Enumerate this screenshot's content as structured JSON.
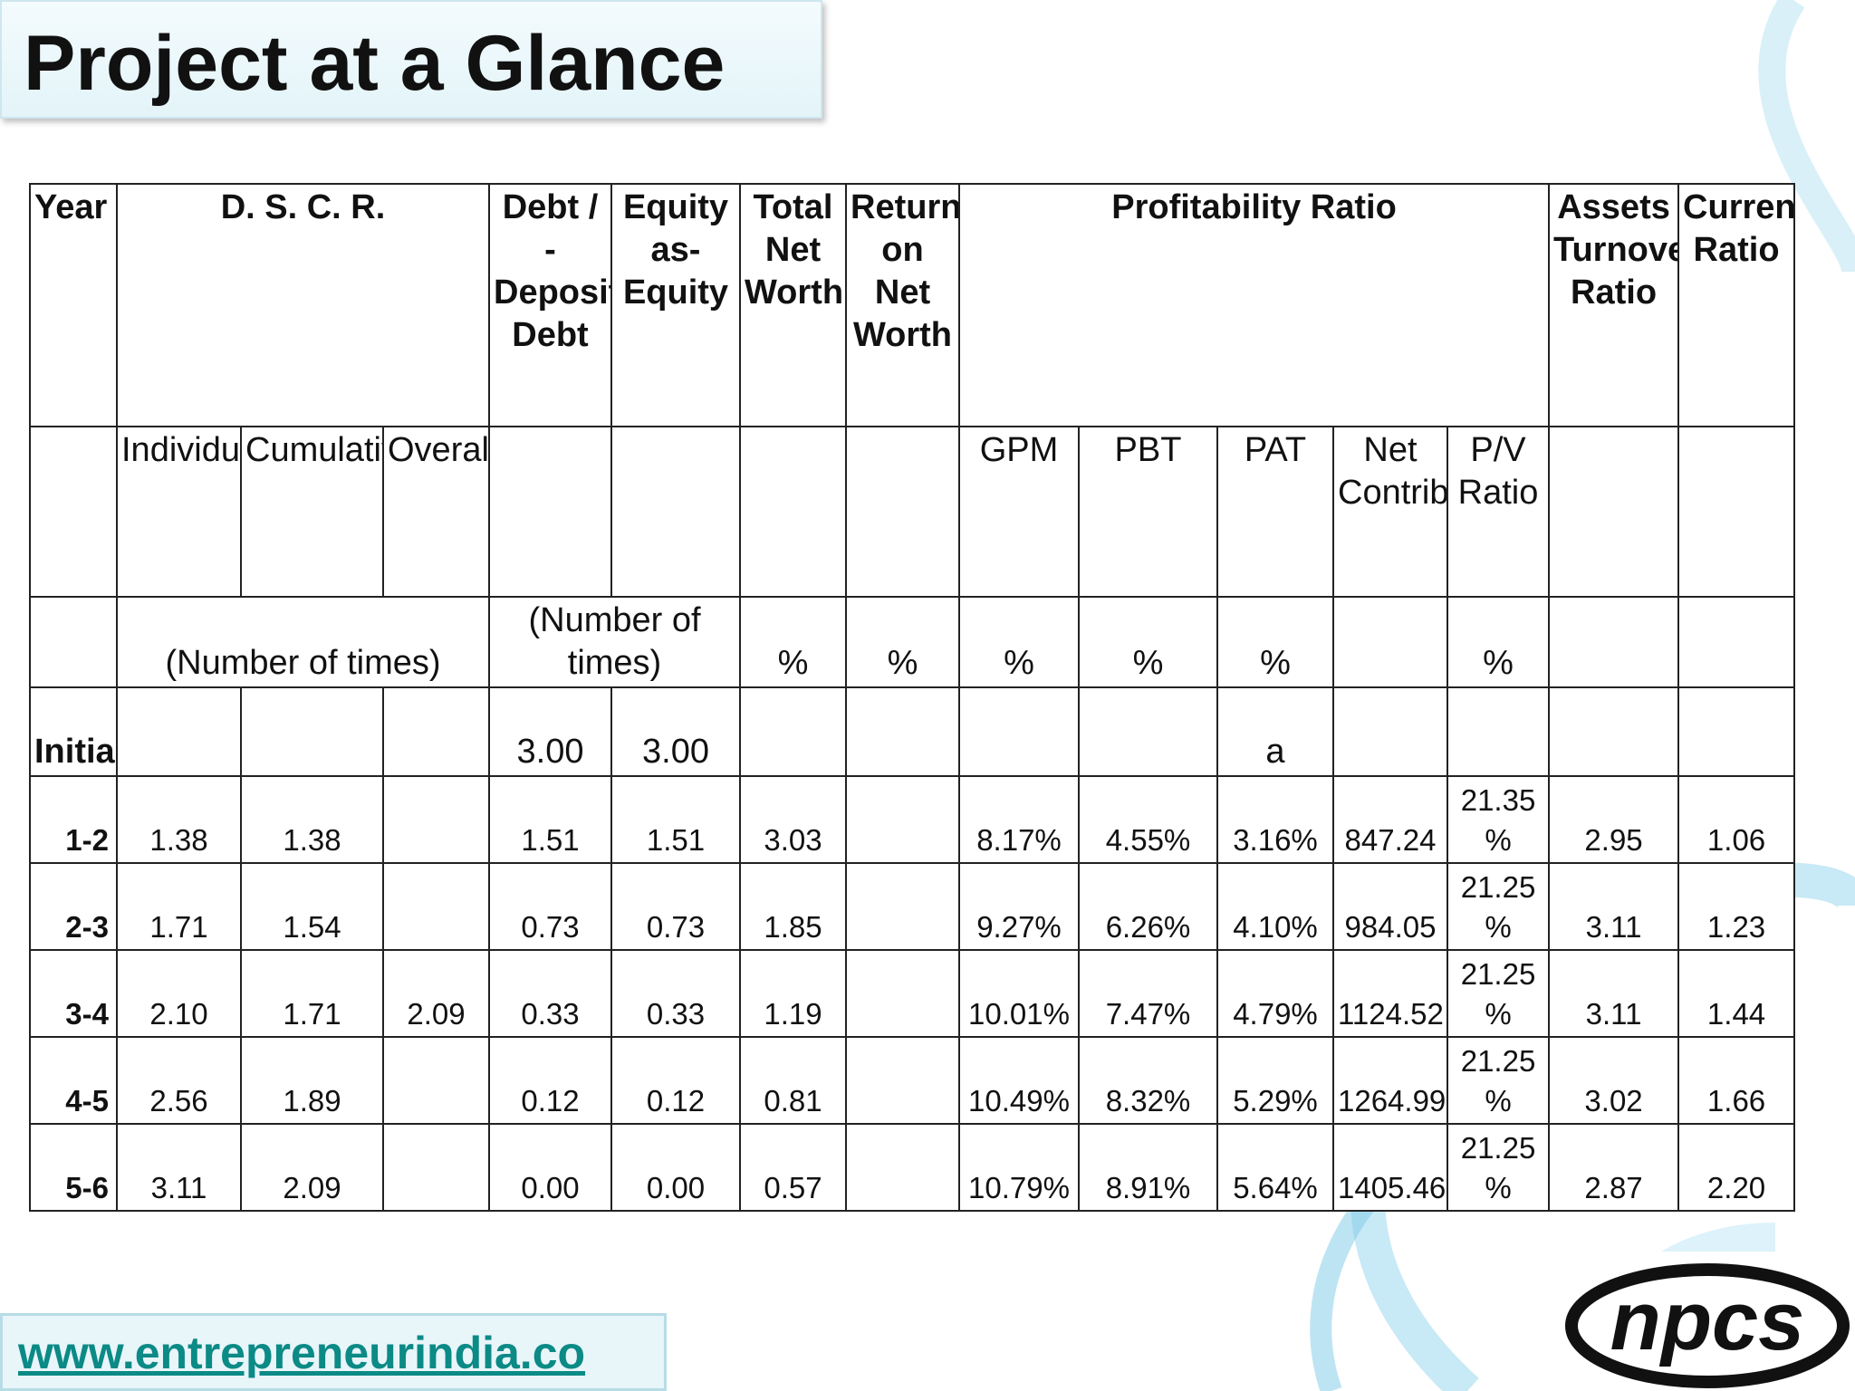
{
  "slide": {
    "title": "Project at a Glance"
  },
  "footer": {
    "link_text": "www.entrepreneurindia.co"
  },
  "logo": {
    "text": "npcs"
  },
  "table": {
    "header": {
      "year": "Year",
      "dscr": "D. S. C. R.",
      "debt_deposits": "Debt / - Deposits Debt",
      "equity": "Equity as- Equity",
      "total_net_worth": "Total Net Worth",
      "return_on_net_worth": "Return on Net Worth",
      "profitability": "Profitability Ratio",
      "assets_turnover": "Assets Turnover Ratio",
      "current_ratio": "Current Ratio"
    },
    "subheader": {
      "individual": "Individual",
      "cumulative": "Cumulative",
      "overall": "Overall",
      "gpm": "GPM",
      "pbt": "PBT",
      "pat": "PAT",
      "net_contribution": "Net Contribution",
      "pv_ratio": "P/V Ratio"
    },
    "units": {
      "dscr": "(Number of times)",
      "debt_equity": "(Number of times)",
      "total_net_worth": "%",
      "return_on_net_worth": "%",
      "gpm": "%",
      "pbt": "%",
      "pat": "%",
      "pv_ratio": "%"
    },
    "initial": {
      "year": "Initial",
      "debt": "3.00",
      "equity": "3.00",
      "pat": "a"
    },
    "rows": [
      {
        "year": "1-2",
        "individual": "1.38",
        "cumulative": "1.38",
        "overall": "",
        "debt": "1.51",
        "equity": "1.51",
        "tnw": "3.03",
        "ronw": "",
        "gpm": "8.17%",
        "pbt": "4.55%",
        "pat": "3.16%",
        "net_contribution": "847.24",
        "pv_ratio": "21.35 %",
        "assets_turnover": "2.95",
        "current_ratio": "1.06"
      },
      {
        "year": "2-3",
        "individual": "1.71",
        "cumulative": "1.54",
        "overall": "",
        "debt": "0.73",
        "equity": "0.73",
        "tnw": "1.85",
        "ronw": "",
        "gpm": "9.27%",
        "pbt": "6.26%",
        "pat": "4.10%",
        "net_contribution": "984.05",
        "pv_ratio": "21.25 %",
        "assets_turnover": "3.11",
        "current_ratio": "1.23"
      },
      {
        "year": "3-4",
        "individual": "2.10",
        "cumulative": "1.71",
        "overall": "2.09",
        "debt": "0.33",
        "equity": "0.33",
        "tnw": "1.19",
        "ronw": "",
        "gpm": "10.01%",
        "pbt": "7.47%",
        "pat": "4.79%",
        "net_contribution": "1124.52",
        "pv_ratio": "21.25 %",
        "assets_turnover": "3.11",
        "current_ratio": "1.44"
      },
      {
        "year": "4-5",
        "individual": "2.56",
        "cumulative": "1.89",
        "overall": "",
        "debt": "0.12",
        "equity": "0.12",
        "tnw": "0.81",
        "ronw": "",
        "gpm": "10.49%",
        "pbt": "8.32%",
        "pat": "5.29%",
        "net_contribution": "1264.99",
        "pv_ratio": "21.25 %",
        "assets_turnover": "3.02",
        "current_ratio": "1.66"
      },
      {
        "year": "5-6",
        "individual": "3.11",
        "cumulative": "2.09",
        "overall": "",
        "debt": "0.00",
        "equity": "0.00",
        "tnw": "0.57",
        "ronw": "",
        "gpm": "10.79%",
        "pbt": "8.91%",
        "pat": "5.64%",
        "net_contribution": "1405.46",
        "pv_ratio": "21.25 %",
        "assets_turnover": "2.87",
        "current_ratio": "2.20"
      }
    ]
  },
  "colors": {
    "accent": "#0b8a86",
    "swirl": "#8fd3ec",
    "title_bg": "#e3f4f9"
  }
}
